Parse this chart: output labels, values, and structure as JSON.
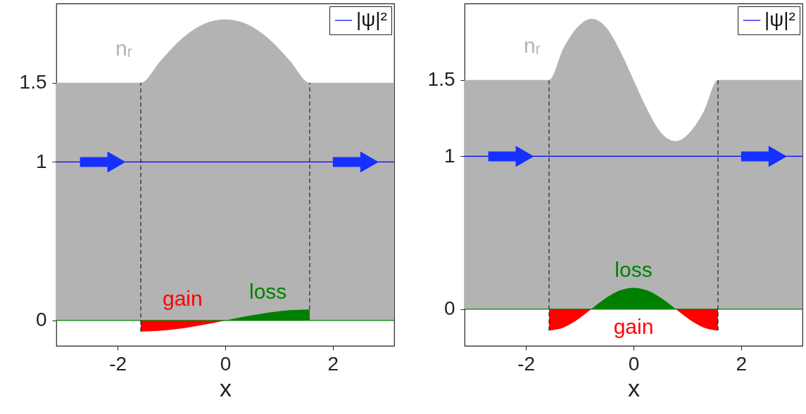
{
  "chart_data": [
    {
      "type": "area",
      "xlabel": "x",
      "xlim": [
        -3.14,
        3.14
      ],
      "ylim": [
        -0.16,
        2.0
      ],
      "xticks": [
        -2,
        0,
        2
      ],
      "yticks": [
        0,
        1,
        1.5
      ],
      "legend": "top right",
      "series": [
        {
          "color": "#b3b3b3",
          "x": [
            -3.14,
            -1.57,
            -1.2,
            -0.8,
            -0.4,
            0,
            0.4,
            0.8,
            1.2,
            1.57,
            3.14
          ],
          "values": [
            1.5,
            1.5,
            1.64,
            1.78,
            1.87,
            1.9,
            1.87,
            1.78,
            1.64,
            1.5,
            1.5
          ]
        },
        {
          "color": "#ff0000",
          "x": [
            -1.57,
            -1.2,
            -0.8,
            -0.4,
            0
          ],
          "values": [
            -0.07,
            -0.065,
            -0.05,
            -0.027,
            0
          ]
        },
        {
          "color": "#008000",
          "x": [
            0,
            0.4,
            0.8,
            1.2,
            1.57
          ],
          "values": [
            0,
            0.027,
            0.05,
            0.065,
            0.07
          ]
        },
        {
          "type": "line",
          "name": "|ψ|²",
          "color": "#0000ff",
          "x": [
            -3.14,
            3.14
          ],
          "values": [
            1,
            1
          ]
        }
      ],
      "ref_lines": [
        {
          "axis": "y",
          "value": 0,
          "color": "#008000"
        },
        {
          "axis": "x",
          "value": -1.57,
          "color": "#222222",
          "line_style": "dashed"
        },
        {
          "axis": "x",
          "value": 1.57,
          "color": "#222222",
          "line_style": "dashed"
        }
      ],
      "annotations": [
        "nᵣ",
        "gain",
        "loss"
      ]
    },
    {
      "type": "area",
      "xlabel": "x",
      "xlim": [
        -3.14,
        3.14
      ],
      "ylim": [
        -0.24,
        2.0
      ],
      "xticks": [
        -2,
        0,
        2
      ],
      "yticks": [
        0,
        1,
        1.5
      ],
      "legend": "top right",
      "series": [
        {
          "color": "#b3b3b3",
          "x": [
            -3.14,
            -1.57,
            -1.3,
            -1.0,
            -0.785,
            -0.5,
            -0.25,
            0,
            0.25,
            0.5,
            0.785,
            1.0,
            1.3,
            1.57,
            3.14
          ],
          "values": [
            1.5,
            1.5,
            1.71,
            1.86,
            1.9,
            1.84,
            1.69,
            1.5,
            1.31,
            1.16,
            1.1,
            1.14,
            1.29,
            1.5,
            1.5
          ]
        },
        {
          "color": "#ff0000",
          "x": [
            -1.57,
            -1.3,
            -1.0,
            -0.785,
            0,
            0.785,
            1.0,
            1.3,
            1.57
          ],
          "values": [
            -0.14,
            -0.12,
            -0.058,
            0,
            null,
            0,
            -0.058,
            -0.12,
            -0.14
          ]
        },
        {
          "color": "#008000",
          "x": [
            -0.785,
            -0.5,
            -0.25,
            0,
            0.25,
            0.5,
            0.785
          ],
          "values": [
            0,
            0.076,
            0.123,
            0.14,
            0.123,
            0.076,
            0
          ]
        },
        {
          "type": "line",
          "name": "|ψ|²",
          "color": "#0000ff",
          "x": [
            -3.14,
            3.14
          ],
          "values": [
            1,
            1
          ]
        }
      ],
      "ref_lines": [
        {
          "axis": "y",
          "value": 0,
          "color": "#008000"
        },
        {
          "axis": "x",
          "value": -1.57,
          "color": "#222222",
          "line_style": "dashed"
        },
        {
          "axis": "x",
          "value": 1.57,
          "color": "#222222",
          "line_style": "dashed"
        }
      ],
      "annotations": [
        "nᵣ",
        "gain",
        "loss"
      ]
    }
  ]
}
